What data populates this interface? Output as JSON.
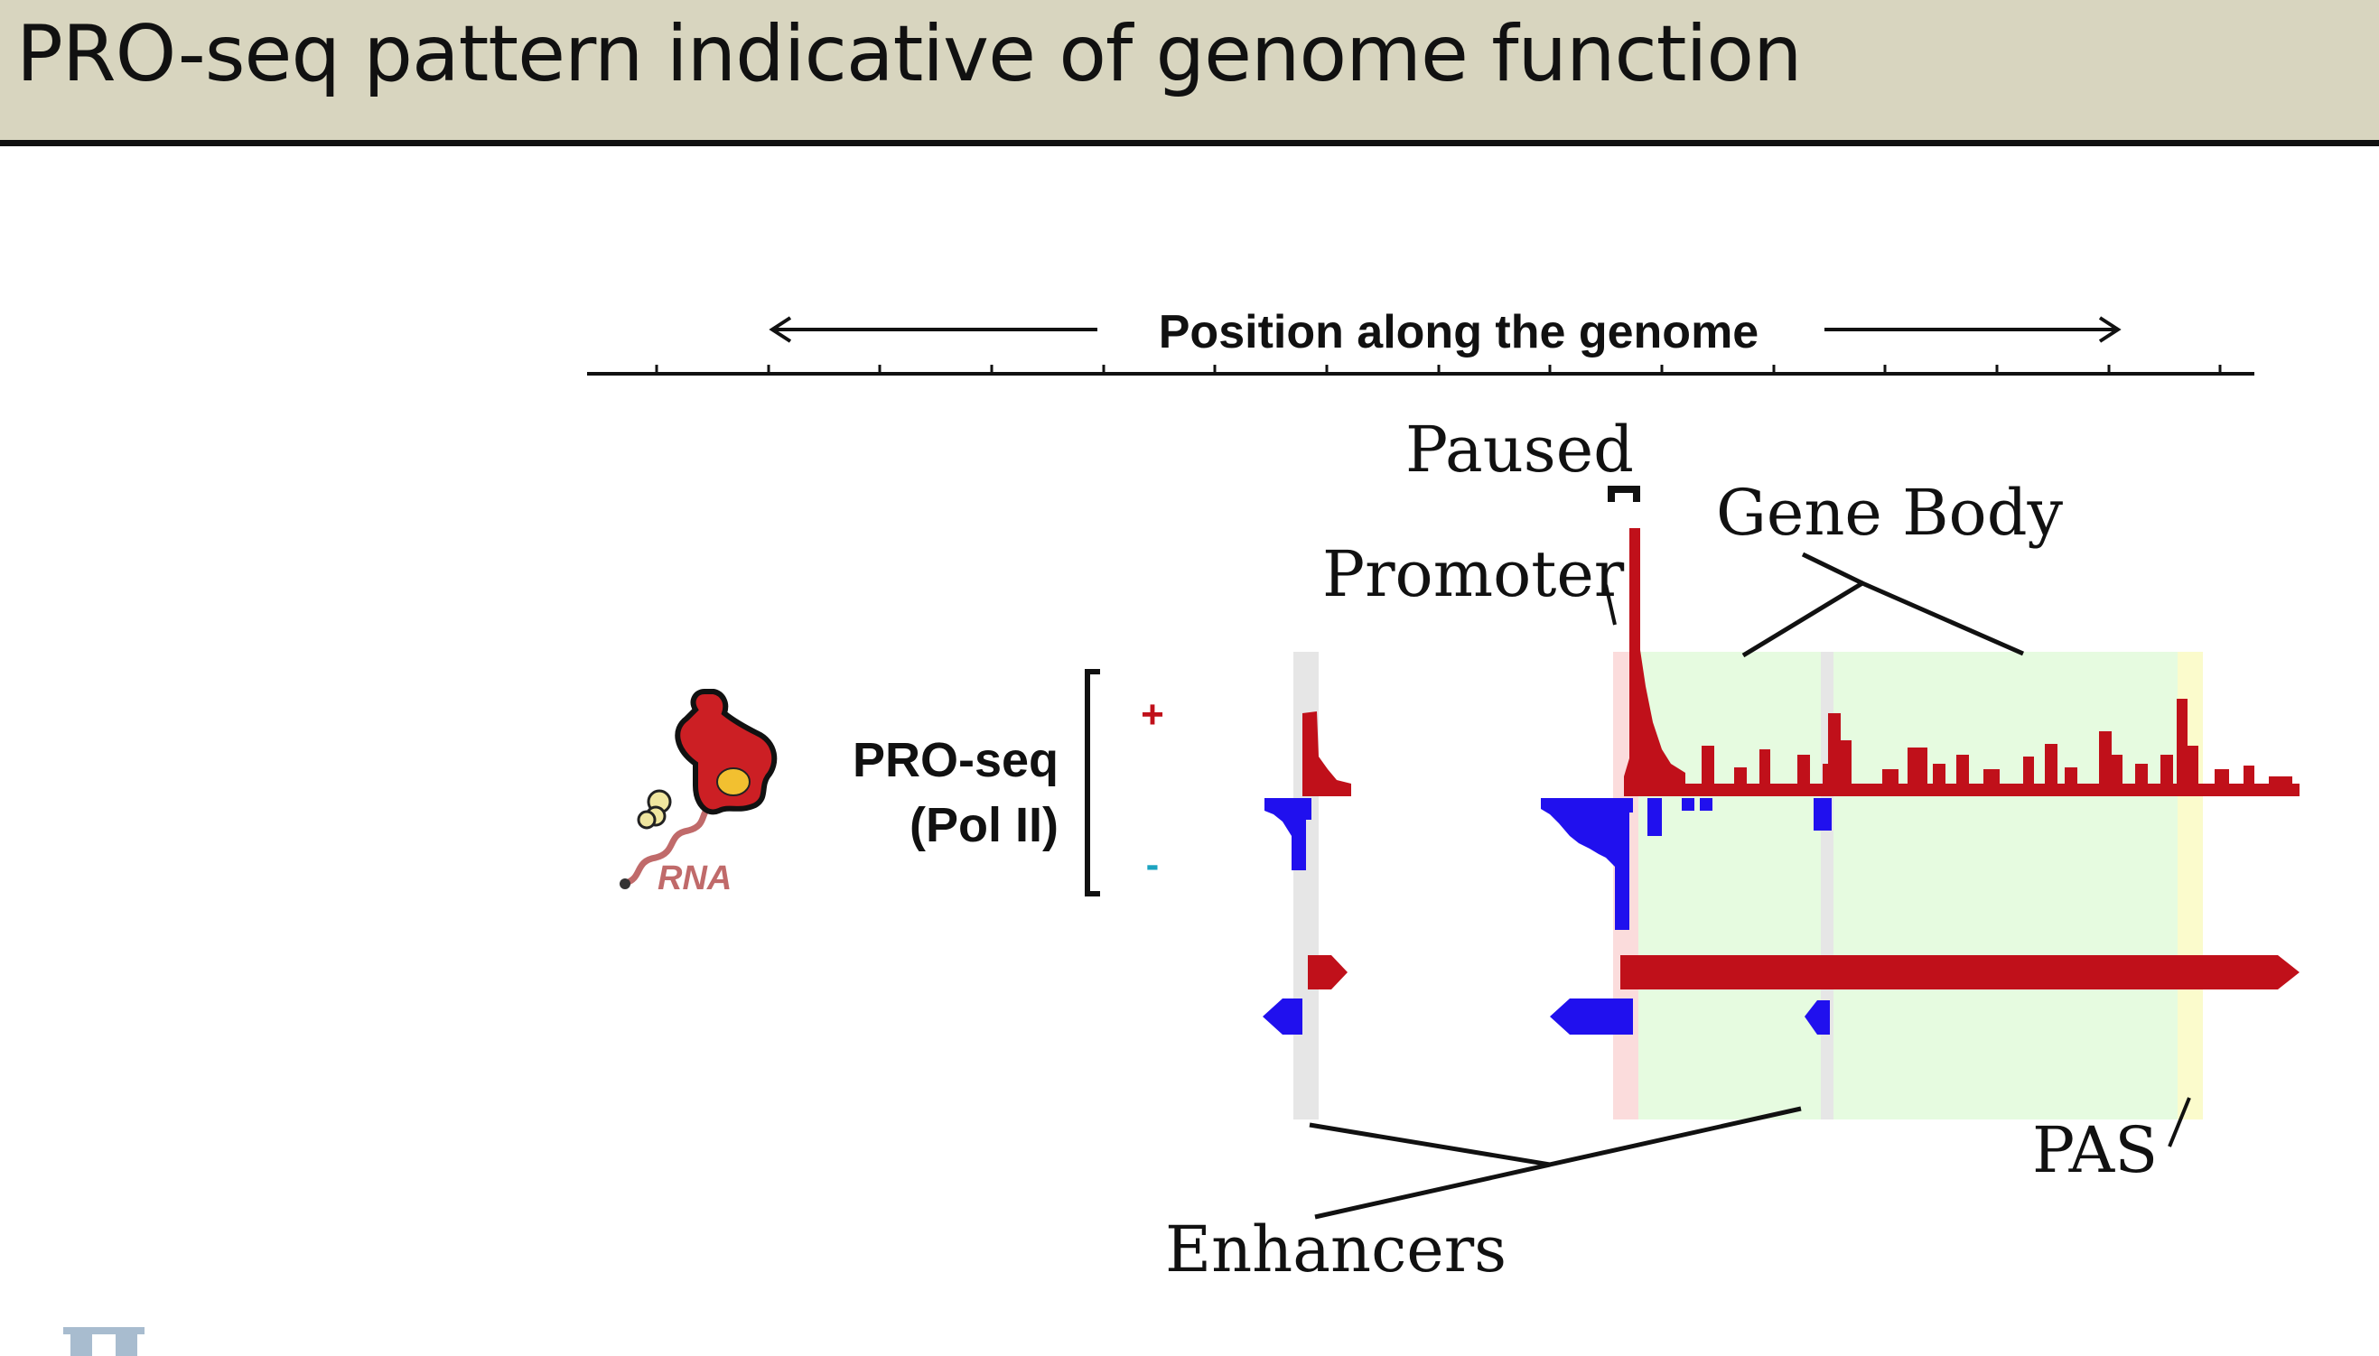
{
  "slide": {
    "title": "PRO-seq pattern indicative of genome function"
  },
  "diagram": {
    "axis_title": "Position along the genome",
    "track_label_line1": "PRO-seq",
    "track_label_line2": "(Pol II)",
    "plus_strand_symbol": "+",
    "minus_strand_symbol": "-",
    "rna_label": "RNA",
    "labels": {
      "paused": "Paused",
      "promoter": "Promoter",
      "gene_body": "Gene Body",
      "enhancers": "Enhancers",
      "pas": "PAS"
    },
    "colors": {
      "plus_signal": "#c0101a",
      "minus_signal": "#2010ee",
      "gene_body_shade": "#e6fbe0",
      "promoter_shade": "#fbdcdc",
      "enhancer_shade": "#e6e6e6",
      "pas_shade": "#fbfbcc",
      "cell_body": "#cc1f24",
      "nucleus": "#f2c030",
      "rna_strand": "#c06a6a"
    }
  }
}
